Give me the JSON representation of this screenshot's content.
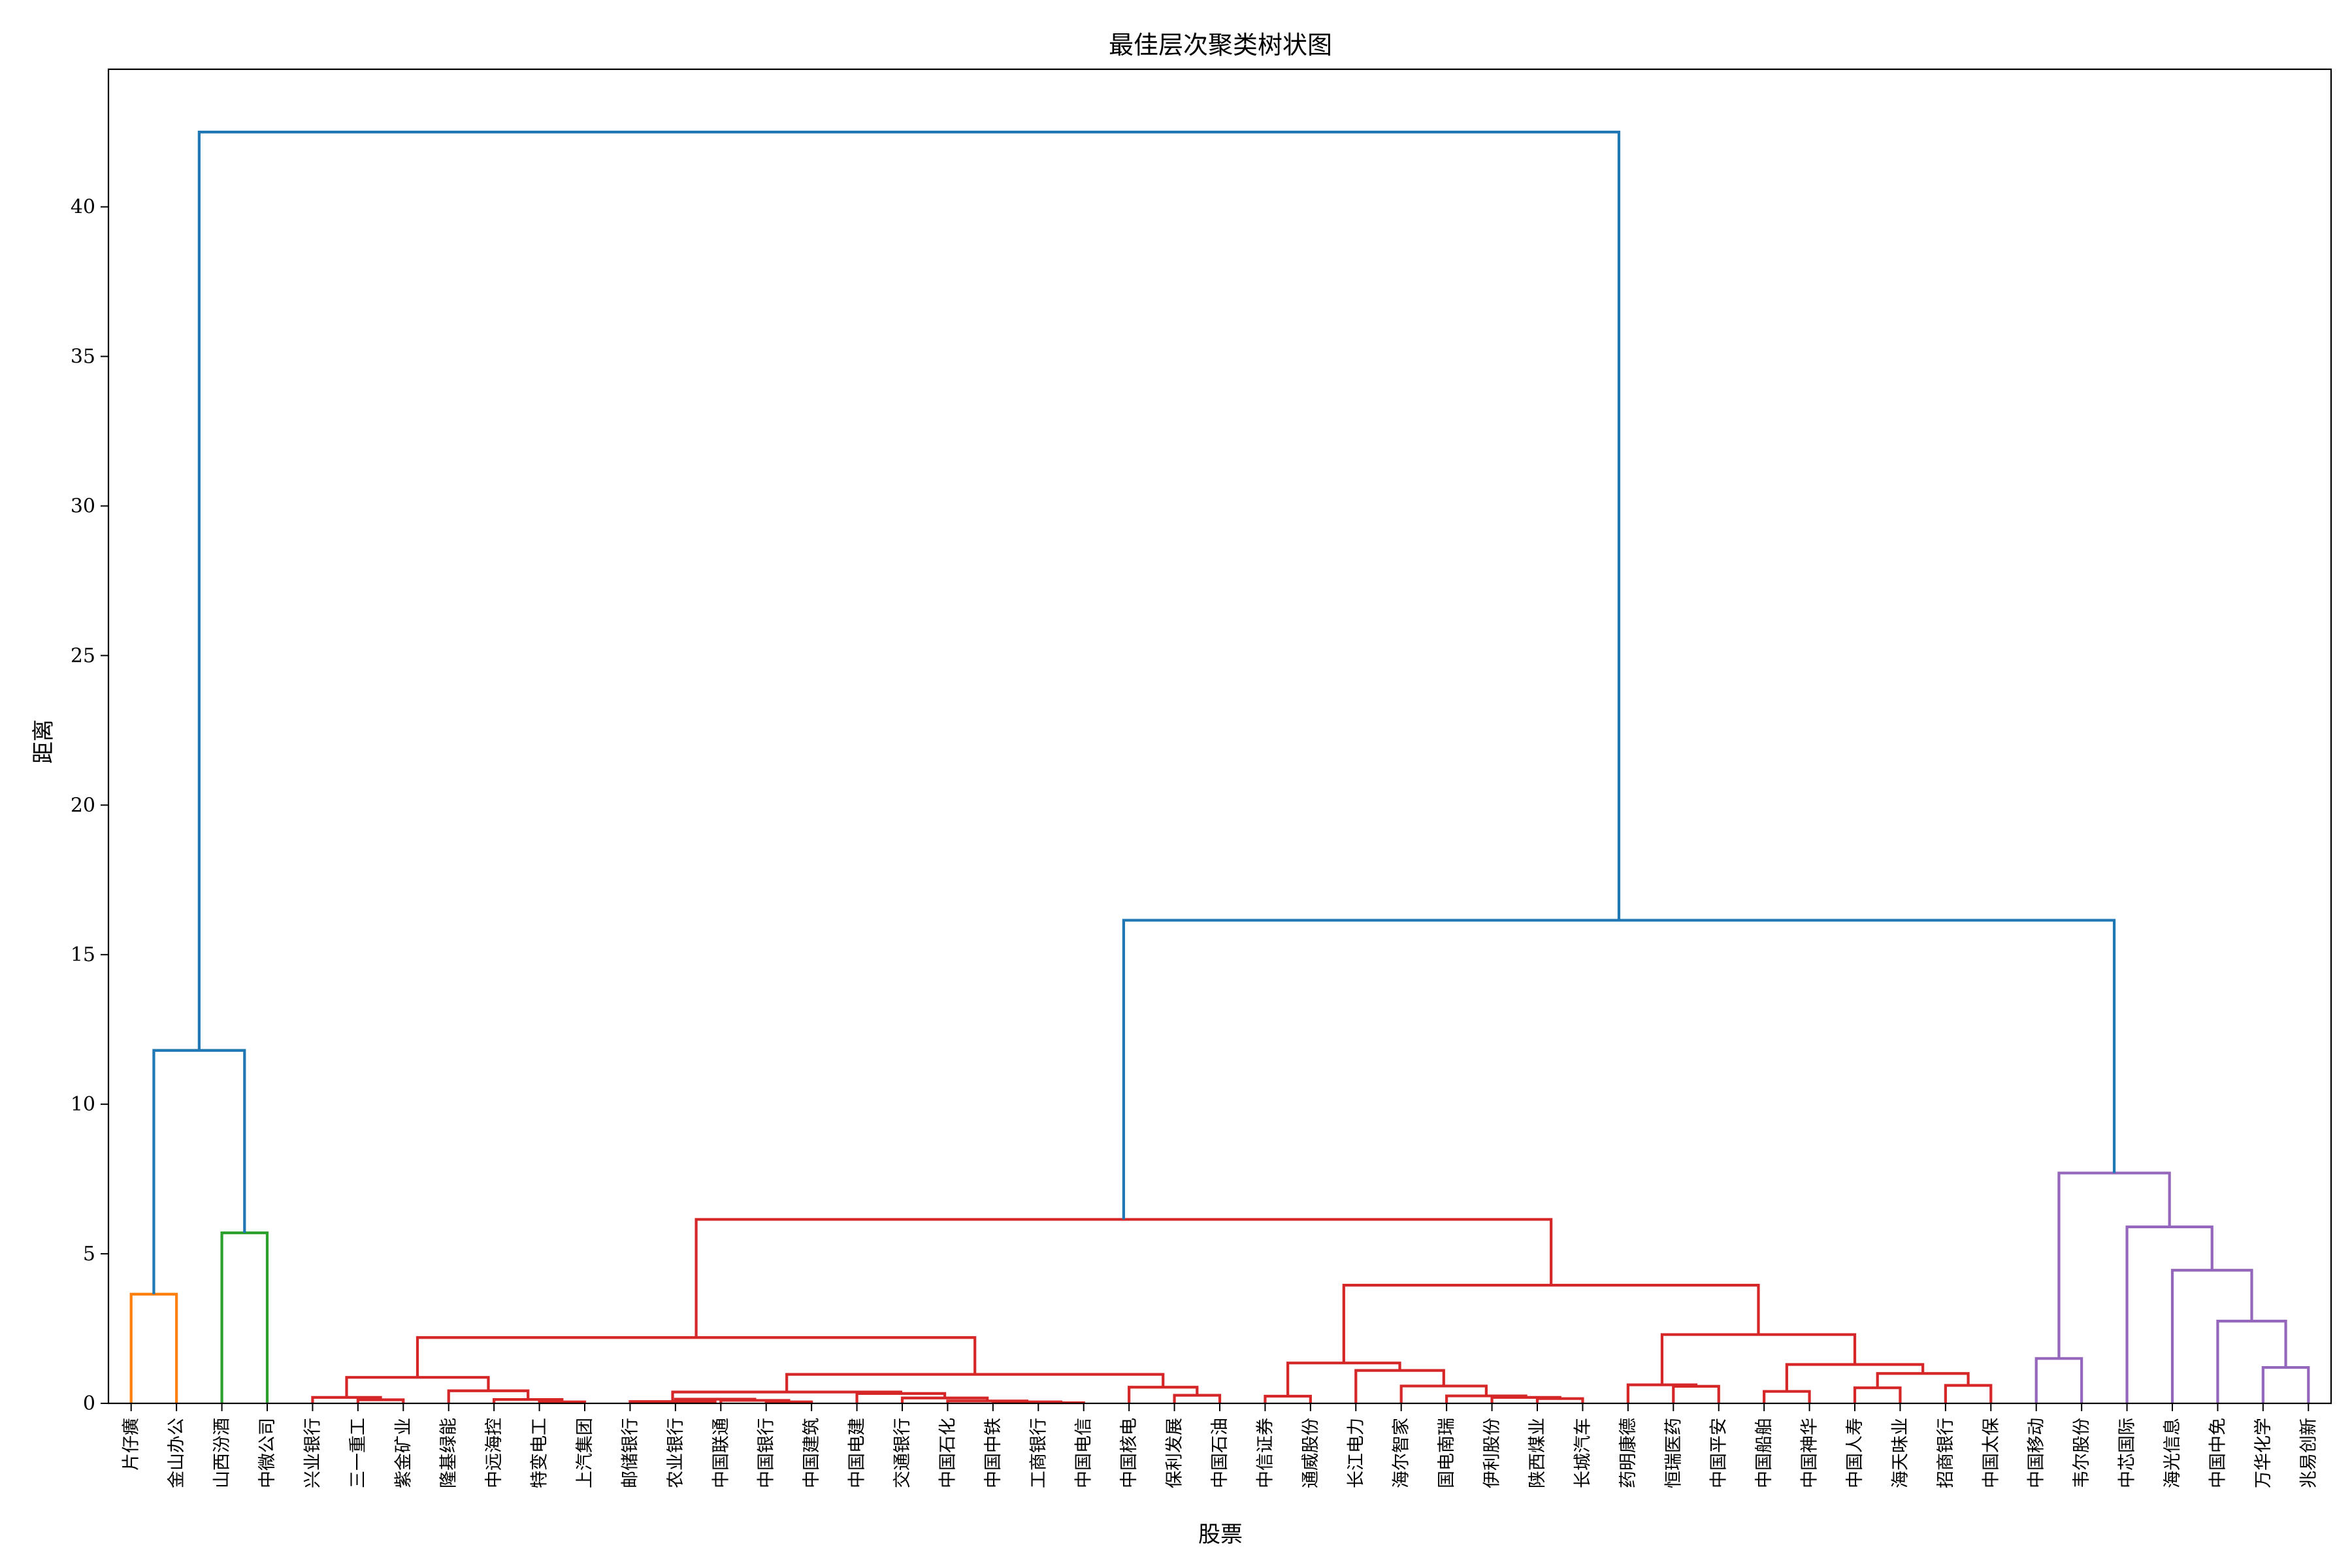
{
  "chart_data": {
    "type": "dendrogram",
    "title": "最佳层次聚类树状图",
    "xlabel": "股票",
    "ylabel": "距离",
    "ylim": [
      0,
      44.6
    ],
    "yticks": [
      0,
      5,
      10,
      15,
      20,
      25,
      30,
      35,
      40
    ],
    "grid": false,
    "leaves": [
      "片仔癀",
      "金山办公",
      "山西汾酒",
      "中微公司",
      "兴业银行",
      "三一重工",
      "紫金矿业",
      "隆基绿能",
      "中远海控",
      "特变电工",
      "上汽集团",
      "邮储银行",
      "农业银行",
      "中国联通",
      "中国银行",
      "中国建筑",
      "中国电建",
      "交通银行",
      "中国石化",
      "中国中铁",
      "工商银行",
      "中国电信",
      "中国核电",
      "保利发展",
      "中国石油",
      "中信证券",
      "通威股份",
      "长江电力",
      "海尔智家",
      "国电南瑞",
      "伊利股份",
      "陕西煤业",
      "长城汽车",
      "药明康德",
      "恒瑞医药",
      "中国平安",
      "中国船舶",
      "中国神华",
      "中国人寿",
      "海天味业",
      "招商银行",
      "中国太保",
      "中国移动",
      "韦尔股份",
      "中芯国际",
      "海光信息",
      "中国中免",
      "万华化学",
      "兆易创新"
    ],
    "colors": {
      "orange": "#ff7f0e",
      "green": "#2ca02c",
      "red": "#d62728",
      "purple": "#9467bd",
      "blue": "#1f77b4"
    },
    "merges": [
      {
        "left": "L0",
        "right": "L1",
        "height": 3.65,
        "color": "orange"
      },
      {
        "left": "L2",
        "right": "L3",
        "height": 5.7,
        "color": "green"
      },
      {
        "left": "M0",
        "right": "M1",
        "height": 11.8,
        "color": "blue"
      },
      {
        "left": "L5",
        "right": "L6",
        "height": 0.12,
        "color": "red"
      },
      {
        "left": "L4",
        "right": "M3",
        "height": 0.2,
        "color": "red"
      },
      {
        "left": "L9",
        "right": "L10",
        "height": 0.05,
        "color": "red"
      },
      {
        "left": "L8",
        "right": "M5",
        "height": 0.13,
        "color": "red"
      },
      {
        "left": "L7",
        "right": "M6",
        "height": 0.42,
        "color": "red"
      },
      {
        "left": "M4",
        "right": "M7",
        "height": 0.87,
        "color": "red"
      },
      {
        "left": "L14",
        "right": "L15",
        "height": 0.05,
        "color": "red"
      },
      {
        "left": "L13",
        "right": "M9",
        "height": 0.1,
        "color": "red"
      },
      {
        "left": "L12",
        "right": "M10",
        "height": 0.14,
        "color": "red"
      },
      {
        "left": "L11",
        "right": "M11",
        "height": 0.06,
        "color": "red"
      },
      {
        "left": "L20",
        "right": "L21",
        "height": 0.02,
        "color": "red"
      },
      {
        "left": "L19",
        "right": "M13",
        "height": 0.05,
        "color": "red"
      },
      {
        "left": "L18",
        "right": "M14",
        "height": 0.08,
        "color": "red"
      },
      {
        "left": "L17",
        "right": "M15",
        "height": 0.18,
        "color": "red"
      },
      {
        "left": "L16",
        "right": "M16",
        "height": 0.33,
        "color": "red"
      },
      {
        "left": "M12",
        "right": "M17",
        "height": 0.38,
        "color": "red"
      },
      {
        "left": "L23",
        "right": "L24",
        "height": 0.27,
        "color": "red"
      },
      {
        "left": "L22",
        "right": "M19",
        "height": 0.54,
        "color": "red"
      },
      {
        "left": "M18",
        "right": "M20",
        "height": 0.97,
        "color": "red"
      },
      {
        "left": "M8",
        "right": "M21",
        "height": 2.2,
        "color": "red"
      },
      {
        "left": "L25",
        "right": "L26",
        "height": 0.24,
        "color": "red"
      },
      {
        "left": "L31",
        "right": "L32",
        "height": 0.16,
        "color": "red"
      },
      {
        "left": "L30",
        "right": "M24",
        "height": 0.2,
        "color": "red"
      },
      {
        "left": "L29",
        "right": "M25",
        "height": 0.25,
        "color": "red"
      },
      {
        "left": "L28",
        "right": "M26",
        "height": 0.58,
        "color": "red"
      },
      {
        "left": "L27",
        "right": "M27",
        "height": 1.1,
        "color": "red"
      },
      {
        "left": "M23",
        "right": "M28",
        "height": 1.35,
        "color": "red"
      },
      {
        "left": "L34",
        "right": "L35",
        "height": 0.57,
        "color": "red"
      },
      {
        "left": "L33",
        "right": "M30",
        "height": 0.62,
        "color": "red"
      },
      {
        "left": "L36",
        "right": "L37",
        "height": 0.4,
        "color": "red"
      },
      {
        "left": "L38",
        "right": "L39",
        "height": 0.52,
        "color": "red"
      },
      {
        "left": "L40",
        "right": "L41",
        "height": 0.6,
        "color": "red"
      },
      {
        "left": "M33",
        "right": "M34",
        "height": 1.0,
        "color": "red"
      },
      {
        "left": "M32",
        "right": "M35",
        "height": 1.3,
        "color": "red"
      },
      {
        "left": "M31",
        "right": "M36",
        "height": 2.3,
        "color": "red"
      },
      {
        "left": "M29",
        "right": "M37",
        "height": 3.95,
        "color": "red"
      },
      {
        "left": "M22",
        "right": "M38",
        "height": 6.15,
        "color": "red"
      },
      {
        "left": "L42",
        "right": "L43",
        "height": 1.5,
        "color": "purple"
      },
      {
        "left": "L47",
        "right": "L48",
        "height": 1.2,
        "color": "purple"
      },
      {
        "left": "L46",
        "right": "M41",
        "height": 2.75,
        "color": "purple"
      },
      {
        "left": "L45",
        "right": "M42",
        "height": 4.45,
        "color": "purple"
      },
      {
        "left": "L44",
        "right": "M43",
        "height": 5.9,
        "color": "purple"
      },
      {
        "left": "M40",
        "right": "M44",
        "height": 7.7,
        "color": "purple"
      },
      {
        "left": "M39",
        "right": "M45",
        "height": 16.15,
        "color": "blue"
      },
      {
        "left": "M2",
        "right": "M46",
        "height": 42.5,
        "color": "blue"
      }
    ]
  }
}
